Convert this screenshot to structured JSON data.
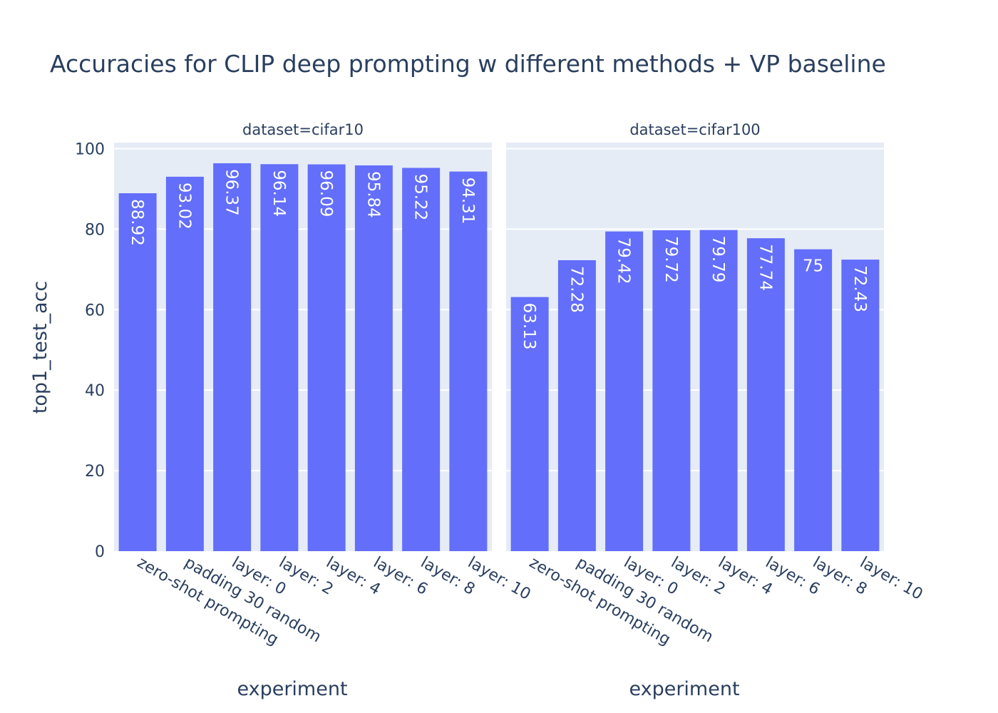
{
  "chart_data": {
    "type": "bar",
    "title": "Accuracies for CLIP deep prompting w different methods + VP baseline",
    "ylabel": "top1_test_acc",
    "xlabel": "experiment",
    "ylim": [
      0,
      100
    ],
    "yticks": [
      0,
      20,
      40,
      60,
      80,
      100
    ],
    "grid": true,
    "colors": {
      "bar": "#636efa",
      "panel": "#e5ecf6",
      "text": "#2a3f5f"
    },
    "categories": [
      "zero-shot prompting",
      "padding 30 random",
      "layer: 0",
      "layer: 2",
      "layer: 4",
      "layer: 6",
      "layer: 8",
      "layer: 10"
    ],
    "facets": [
      {
        "title": "dataset=cifar10",
        "values": [
          88.92,
          93.02,
          96.37,
          96.14,
          96.09,
          95.84,
          95.22,
          94.31
        ],
        "labels": [
          "88.92",
          "93.02",
          "96.37",
          "96.14",
          "96.09",
          "95.84",
          "95.22",
          "94.31"
        ]
      },
      {
        "title": "dataset=cifar100",
        "values": [
          63.13,
          72.28,
          79.42,
          79.72,
          79.79,
          77.74,
          75,
          72.43
        ],
        "labels": [
          "63.13",
          "72.28",
          "79.42",
          "79.72",
          "79.79",
          "77.74",
          "75",
          "72.43"
        ]
      }
    ]
  }
}
